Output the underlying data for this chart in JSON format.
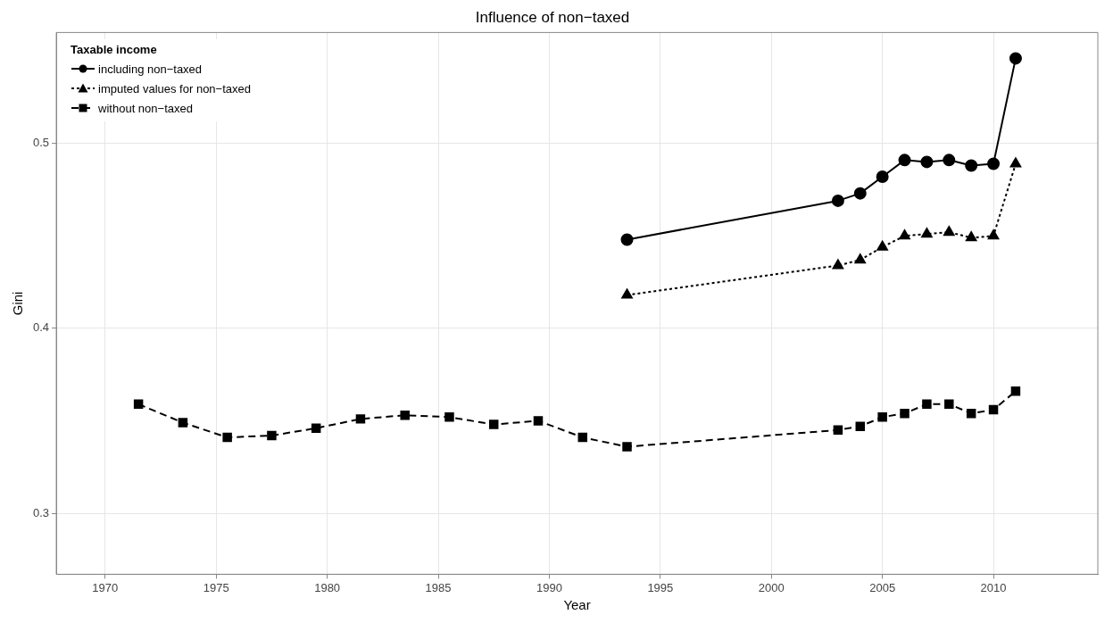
{
  "chart_data": {
    "type": "line",
    "title": "Influence of non−taxed",
    "xlabel": "Year",
    "ylabel": "Gini",
    "legend_title": "Taxable income",
    "legend": "top left",
    "grid": true,
    "xlim": [
      1967.8,
      2014.7
    ],
    "xticks": [
      1970,
      1975,
      1980,
      1985,
      1990,
      1995,
      2000,
      2005,
      2010
    ],
    "ylim": [
      0.267,
      0.56
    ],
    "yticks": [
      0.3,
      0.4,
      0.5
    ],
    "series": [
      {
        "name": "including non−taxed",
        "color": "#000000",
        "marker": "circle",
        "line_style": "solid",
        "x": [
          1993.5,
          2003,
          2004,
          2005,
          2006,
          2007,
          2008,
          2009,
          2010,
          2011
        ],
        "values": [
          0.448,
          0.469,
          0.473,
          0.482,
          0.491,
          0.49,
          0.491,
          0.488,
          0.489,
          0.546
        ]
      },
      {
        "name": "imputed values for non−taxed",
        "color": "#000000",
        "marker": "triangle",
        "line_style": "dotted",
        "x": [
          1993.5,
          2003,
          2004,
          2005,
          2006,
          2007,
          2008,
          2009,
          2010,
          2011
        ],
        "values": [
          0.418,
          0.434,
          0.437,
          0.444,
          0.45,
          0.451,
          0.452,
          0.449,
          0.45,
          0.489
        ]
      },
      {
        "name": "without non−taxed",
        "color": "#000000",
        "marker": "square",
        "line_style": "dashed",
        "x": [
          1971.5,
          1973.5,
          1975.5,
          1977.5,
          1979.5,
          1981.5,
          1983.5,
          1985.5,
          1987.5,
          1989.5,
          1991.5,
          1993.5,
          2003,
          2004,
          2005,
          2006,
          2007,
          2008,
          2009,
          2010,
          2011
        ],
        "values": [
          0.359,
          0.349,
          0.341,
          0.342,
          0.346,
          0.351,
          0.353,
          0.352,
          0.348,
          0.35,
          0.341,
          0.336,
          0.345,
          0.347,
          0.352,
          0.354,
          0.359,
          0.359,
          0.354,
          0.356,
          0.366
        ]
      }
    ]
  }
}
